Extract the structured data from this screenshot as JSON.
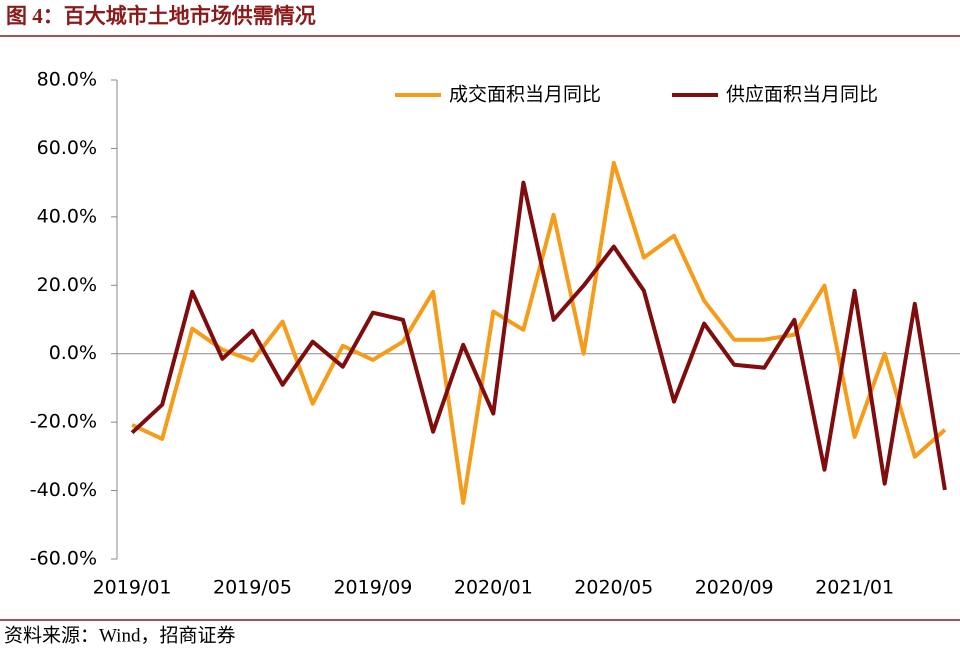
{
  "chart_data": {
    "type": "line",
    "title": "图 4：百大城市土地市场供需情况",
    "source": "资料来源：Wind，招商证券",
    "categories": [
      "2019/01",
      null,
      null,
      null,
      "2019/05",
      null,
      null,
      null,
      "2019/09",
      null,
      null,
      null,
      "2020/01",
      null,
      null,
      null,
      "2020/05",
      null,
      null,
      null,
      "2020/09",
      null,
      null,
      null,
      "2021/01",
      null,
      null,
      null
    ],
    "series": [
      {
        "name": "成交面积当月同比",
        "color": "#f59c1a",
        "values": [
          -20.8,
          -24.9,
          7.3,
          1.2,
          -2.0,
          9.4,
          -14.6,
          2.3,
          -1.8,
          3.5,
          18.1,
          -43.6,
          12.3,
          7.0,
          40.6,
          0,
          55.8,
          28.1,
          34.5,
          15.5,
          4.1,
          4.1,
          5.6,
          19.9,
          -24.3,
          0,
          -30.1,
          -22.2
        ]
      },
      {
        "name": "供应面积当月同比",
        "color": "#7f0d0d",
        "values": [
          -23.1,
          -14.9,
          18.1,
          -1.5,
          6.7,
          -9.1,
          3.5,
          -3.8,
          12.0,
          9.9,
          -22.8,
          2.6,
          -17.5,
          50.0,
          9.9,
          19.9,
          31.3,
          18.4,
          -14.0,
          8.8,
          -3.2,
          -4.1,
          9.9,
          -33.9,
          18.4,
          -38.0,
          14.6,
          -39.8
        ]
      }
    ],
    "ylim": [
      -60,
      80
    ],
    "yticks": [
      {
        "value": -60,
        "label": "-60.0%"
      },
      {
        "value": -40,
        "label": "-40.0%"
      },
      {
        "value": -20,
        "label": "-20.0%"
      },
      {
        "value": 0,
        "label": "0.0%"
      },
      {
        "value": 20,
        "label": "20.0%"
      },
      {
        "value": 40,
        "label": "40.0%"
      },
      {
        "value": 60,
        "label": "60.0%"
      },
      {
        "value": 80,
        "label": "80.0%"
      }
    ],
    "legend": "upper right",
    "grid": false
  }
}
